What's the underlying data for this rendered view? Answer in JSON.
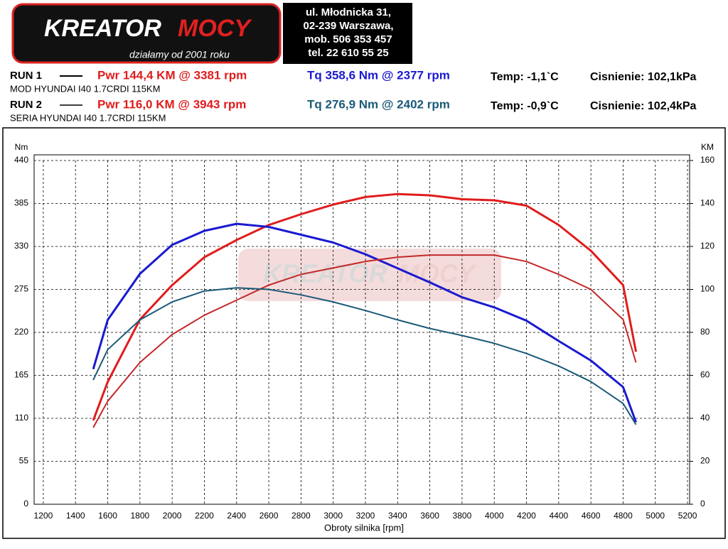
{
  "header": {
    "logo_left": "KREATOR",
    "logo_right": "MOCY",
    "tagline": "działamy od 2001 roku",
    "address": [
      "ul. Młodnicka 31,",
      "02-239  Warszawa,",
      "mob.  506 353 457",
      "tel.  22 610 55 25"
    ]
  },
  "runs": [
    {
      "label": "RUN 1",
      "power": "Pwr  144,4 KM @ 3381 rpm",
      "torque": "Tq 358,6 Nm @ 2377 rpm",
      "temp": "Temp: -1,1`C",
      "pressure": "Cisnienie: 102,1kPa",
      "description": "MOD HYUNDAI I40 1.7CRDI 115KM"
    },
    {
      "label": "RUN 2",
      "power": "Pwr  116,0 KM @ 3943 rpm",
      "torque": "Tq 276,9 Nm @ 2402 rpm",
      "temp": "Temp: -0,9`C",
      "pressure": "Cisnienie: 102,4kPa",
      "description": "SERIA HYUNDAI I40 1.7CRDI 115KM"
    }
  ],
  "chart_data": {
    "type": "line",
    "y_label": "Nm",
    "y2_label": "KM",
    "x_label": "Obroty silnika [rpm]",
    "x": [
      1510,
      1600,
      1800,
      2000,
      2200,
      2400,
      2600,
      2800,
      3000,
      3200,
      3400,
      3600,
      3800,
      4000,
      4200,
      4400,
      4600,
      4800,
      4880
    ],
    "series": [
      {
        "color": "#e01c1c",
        "axis": "y2",
        "width": 3,
        "values": [
          39,
          57,
          86,
          102,
          115,
          123,
          130,
          135,
          139.5,
          143,
          144.4,
          143.8,
          142,
          141.5,
          139,
          130,
          118,
          102,
          71
        ]
      },
      {
        "color": "#1a1ad0",
        "axis": "y",
        "width": 3,
        "values": [
          173,
          236,
          295,
          332,
          350,
          359,
          355,
          345,
          335,
          320,
          302,
          284,
          265,
          252,
          235,
          209,
          184,
          150,
          105
        ]
      },
      {
        "color": "#c42828",
        "axis": "y2",
        "width": 2,
        "values": [
          35.7,
          48,
          66,
          79,
          88,
          95,
          102,
          107,
          110,
          113,
          115,
          116,
          116,
          116,
          113,
          107,
          100,
          86,
          66
        ]
      },
      {
        "color": "#1b5a78",
        "axis": "y",
        "width": 2,
        "values": [
          159,
          198,
          236,
          259,
          273,
          277,
          275,
          268,
          259,
          248,
          236,
          225,
          216,
          206,
          193,
          177,
          157,
          129,
          102
        ]
      }
    ],
    "xlim": [
      1143,
      5213
    ],
    "xticks": [
      1200,
      1400,
      1600,
      1800,
      2000,
      2200,
      2400,
      2600,
      2800,
      3000,
      3200,
      3400,
      3600,
      3800,
      4000,
      4200,
      4400,
      4600,
      4800,
      5000,
      5200
    ],
    "ylim": [
      0,
      440
    ],
    "yticks": [
      0,
      55,
      110,
      165,
      220,
      275,
      330,
      385,
      440
    ],
    "y2lim": [
      0,
      160
    ],
    "y2ticks": [
      0,
      20,
      40,
      60,
      80,
      100,
      120,
      140,
      160
    ],
    "grid": true
  }
}
